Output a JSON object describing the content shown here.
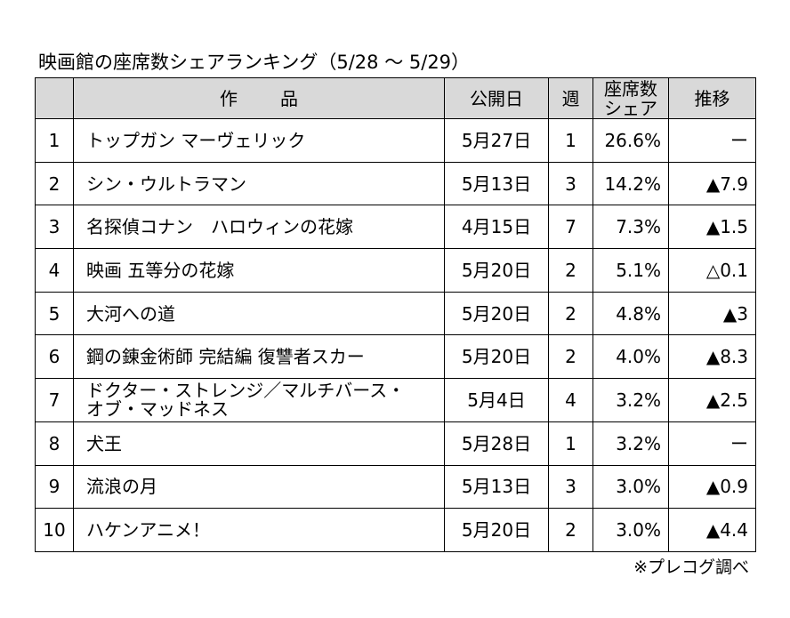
{
  "title": "映画館の座席数シェアランキング（5/28 〜 5/29）",
  "headers": {
    "rank": "",
    "title_a": "作",
    "title_b": "品",
    "release": "公開日",
    "week": "週",
    "share_a": "座席数",
    "share_b": "シェア",
    "trend": "推移"
  },
  "rows": [
    {
      "rank": "1",
      "title": "トップガン マーヴェリック",
      "title2": "",
      "release": "5月27日",
      "week": "1",
      "share": "26.6%",
      "trend": "ー"
    },
    {
      "rank": "2",
      "title": "シン・ウルトラマン",
      "title2": "",
      "release": "5月13日",
      "week": "3",
      "share": "14.2%",
      "trend": "▲7.9"
    },
    {
      "rank": "3",
      "title": "名探偵コナン　ハロウィンの花嫁",
      "title2": "",
      "release": "4月15日",
      "week": "7",
      "share": "7.3%",
      "trend": "▲1.5"
    },
    {
      "rank": "4",
      "title": "映画 五等分の花嫁",
      "title2": "",
      "release": "5月20日",
      "week": "2",
      "share": "5.1%",
      "trend": "△0.1"
    },
    {
      "rank": "5",
      "title": "大河への道",
      "title2": "",
      "release": "5月20日",
      "week": "2",
      "share": "4.8%",
      "trend": "▲3"
    },
    {
      "rank": "6",
      "title": "鋼の錬金術師 完結編 復讐者スカー",
      "title2": "",
      "release": "5月20日",
      "week": "2",
      "share": "4.0%",
      "trend": "▲8.3"
    },
    {
      "rank": "7",
      "title": "ドクター・ストレンジ／マルチバース・",
      "title2": "オブ・マッドネス",
      "release": "5月4日",
      "week": "4",
      "share": "3.2%",
      "trend": "▲2.5"
    },
    {
      "rank": "8",
      "title": "犬王",
      "title2": "",
      "release": "5月28日",
      "week": "1",
      "share": "3.2%",
      "trend": "ー"
    },
    {
      "rank": "9",
      "title": "流浪の月",
      "title2": "",
      "release": "5月13日",
      "week": "3",
      "share": "3.0%",
      "trend": "▲0.9"
    },
    {
      "rank": "10",
      "title": "ハケンアニメ！",
      "title2": "",
      "release": "5月20日",
      "week": "2",
      "share": "3.0%",
      "trend": "▲4.4"
    }
  ],
  "note": "※プレコグ調べ"
}
